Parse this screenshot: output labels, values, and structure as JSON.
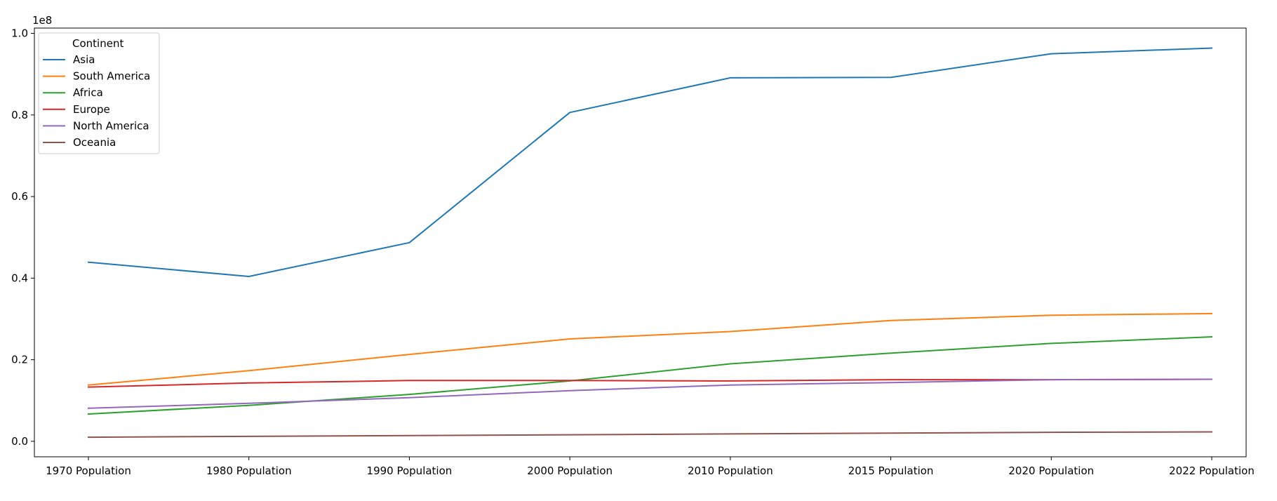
{
  "chart_data": {
    "type": "line",
    "title": "",
    "xlabel": "",
    "ylabel": "",
    "y_offset_label": "1e8",
    "categories": [
      "1970 Population",
      "1980 Population",
      "1990 Population",
      "2000 Population",
      "2010 Population",
      "2015 Population",
      "2020 Population",
      "2022 Population"
    ],
    "ylim": [
      -0.038,
      1.013
    ],
    "yticks": [
      0.0,
      0.2,
      0.4,
      0.6,
      0.8,
      1.0
    ],
    "ytick_labels": [
      "0.0",
      "0.2",
      "0.4",
      "0.6",
      "0.8",
      "1.0"
    ],
    "grid": false,
    "legend": {
      "title": "Continent",
      "position": "top-left"
    },
    "series": [
      {
        "name": "Asia",
        "color": "#1f77b4",
        "values": [
          0.439,
          0.404,
          0.487,
          0.806,
          0.891,
          0.892,
          0.95,
          0.964
        ]
      },
      {
        "name": "South America",
        "color": "#ff7f0e",
        "values": [
          0.138,
          0.173,
          0.213,
          0.251,
          0.269,
          0.296,
          0.309,
          0.313
        ]
      },
      {
        "name": "Africa",
        "color": "#2ca02c",
        "values": [
          0.067,
          0.088,
          0.115,
          0.148,
          0.19,
          0.216,
          0.24,
          0.256
        ]
      },
      {
        "name": "Europe",
        "color": "#d62728",
        "values": [
          0.133,
          0.143,
          0.149,
          0.149,
          0.148,
          0.151,
          0.151,
          0.152
        ]
      },
      {
        "name": "North America",
        "color": "#9467bd",
        "values": [
          0.081,
          0.093,
          0.107,
          0.124,
          0.138,
          0.144,
          0.151,
          0.152
        ]
      },
      {
        "name": "Oceania",
        "color": "#8c564b",
        "values": [
          0.01,
          0.012,
          0.014,
          0.016,
          0.018,
          0.02,
          0.022,
          0.023
        ]
      }
    ]
  }
}
